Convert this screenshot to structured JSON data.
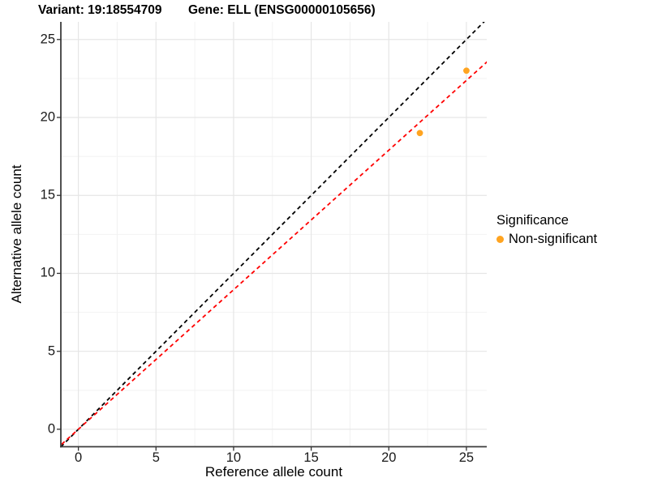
{
  "header": {
    "variant_title": "Variant: 19:18554709",
    "gene_title": "Gene: ELL (ENSG00000105656)"
  },
  "axes": {
    "x_label": "Reference allele count",
    "y_label": "Alternative allele count"
  },
  "legend": {
    "title": "Significance",
    "items": [
      {
        "label": "Non-significant",
        "color": "#FFA420"
      }
    ]
  },
  "chart_data": {
    "type": "scatter",
    "title_left": "Variant: 19:18554709",
    "title_right": "Gene: ELL (ENSG00000105656)",
    "xlabel": "Reference allele count",
    "ylabel": "Alternative allele count",
    "x_ticks": [
      0,
      5,
      10,
      15,
      20,
      25
    ],
    "y_ticks": [
      0,
      5,
      10,
      15,
      20,
      25
    ],
    "xlim": [
      -1.13,
      26.31
    ],
    "ylim": [
      -1.12,
      26.13
    ],
    "grid": "major+minor",
    "legend_position": "right",
    "series": [
      {
        "name": "Non-significant",
        "color": "#FFA420",
        "points": [
          {
            "x": 22,
            "y": 19
          },
          {
            "x": 25,
            "y": 23
          }
        ]
      }
    ],
    "lines": [
      {
        "name": "identity",
        "slope": 1.0,
        "intercept": 0,
        "color": "#000000",
        "dash": true
      },
      {
        "name": "fit",
        "slope": 0.895,
        "intercept": 0,
        "color": "#FF0000",
        "dash": true
      }
    ]
  }
}
